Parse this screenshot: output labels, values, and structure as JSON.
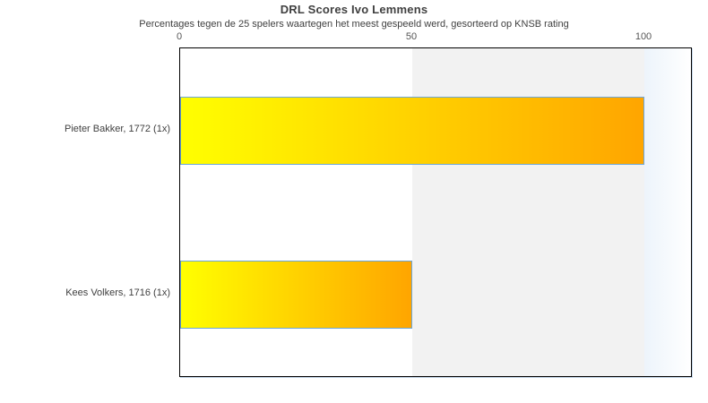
{
  "chart_data": {
    "type": "bar",
    "orientation": "horizontal",
    "title": "DRL Scores Ivo Lemmens",
    "subtitle": "Percentages tegen de 25 spelers waartegen het meest gespeeld werd, gesorteerd op KNSB rating",
    "categories": [
      "Pieter Bakker, 1772 (1x)",
      "Kees Volkers, 1716 (1x)"
    ],
    "values": [
      100,
      50
    ],
    "x_ticks": [
      "0",
      "50",
      "100"
    ],
    "x_tick_values": [
      0,
      50,
      100
    ],
    "xlim": [
      0,
      110
    ],
    "xlabel": "",
    "ylabel": "",
    "grid": false,
    "legend": false,
    "background_bands": [
      {
        "from": 50,
        "to": 100,
        "color": "#f2f2f2"
      }
    ],
    "colors": {
      "bar_gradient_start": "#ffff00",
      "bar_gradient_end": "#ffa500",
      "bar_border": "#6ca6d8",
      "plot_border": "#000000",
      "band": "#f2f2f2",
      "overflow_start": "#edf4fb",
      "overflow_end": "#ffffff",
      "title_text": "#404040",
      "subtitle_text": "#404040",
      "tick_text": "#555555",
      "label_text": "#404040",
      "page_background": "#ffffff"
    }
  }
}
